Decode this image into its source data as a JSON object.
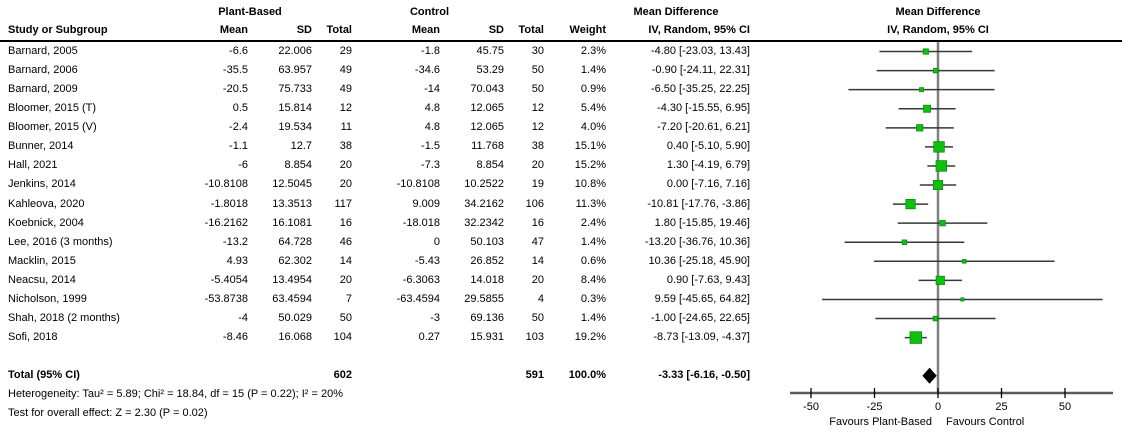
{
  "header": {
    "col_study": "Study or Subgroup",
    "group_experimental": "Plant-Based",
    "group_control": "Control",
    "col_mean": "Mean",
    "col_sd": "SD",
    "col_total": "Total",
    "col_weight": "Weight",
    "md_title": "Mean Difference",
    "md_subtitle": "IV, Random, 95% CI"
  },
  "footer": {
    "heterogeneity": "Heterogeneity: Tau² = 5.89; Chi² = 18.84, df = 15 (P = 0.22); I² = 20%",
    "overall_effect": "Test for overall effect: Z = 2.30 (P = 0.02)"
  },
  "chart_data": {
    "type": "forest",
    "effect_measure": "Mean Difference",
    "model": "IV, Random, 95% CI",
    "axis_ticks": [
      -50,
      -25,
      0,
      25,
      50
    ],
    "xlim": [
      -58,
      69
    ],
    "favours_left": "Favours Plant-Based",
    "favours_right": "Favours Control",
    "marker_color": "#0fc10f",
    "marker_edge_color": "#0b8f0b",
    "ci_line_color": "#383838",
    "zero_line_color": "#808080",
    "diamond_color": "#000000",
    "studies": [
      {
        "name": "Barnard, 2005",
        "pb_mean": "-6.6",
        "pb_sd": "22.006",
        "pb_total": "29",
        "c_mean": "-1.8",
        "c_sd": "45.75",
        "c_total": "30",
        "weight": "2.3%",
        "md_text": "-4.80 [-23.03, 13.43]",
        "md": -4.8,
        "ci": [
          -23.03,
          13.43
        ],
        "w": 2.3
      },
      {
        "name": "Barnard, 2006",
        "pb_mean": "-35.5",
        "pb_sd": "63.957",
        "pb_total": "49",
        "c_mean": "-34.6",
        "c_sd": "53.29",
        "c_total": "50",
        "weight": "1.4%",
        "md_text": "-0.90 [-24.11, 22.31]",
        "md": -0.9,
        "ci": [
          -24.11,
          22.31
        ],
        "w": 1.4
      },
      {
        "name": "Barnard, 2009",
        "pb_mean": "-20.5",
        "pb_sd": "75.733",
        "pb_total": "49",
        "c_mean": "-14",
        "c_sd": "70.043",
        "c_total": "50",
        "weight": "0.9%",
        "md_text": "-6.50 [-35.25, 22.25]",
        "md": -6.5,
        "ci": [
          -35.25,
          22.25
        ],
        "w": 0.9
      },
      {
        "name": "Bloomer, 2015 (T)",
        "pb_mean": "0.5",
        "pb_sd": "15.814",
        "pb_total": "12",
        "c_mean": "4.8",
        "c_sd": "12.065",
        "c_total": "12",
        "weight": "5.4%",
        "md_text": "-4.30 [-15.55, 6.95]",
        "md": -4.3,
        "ci": [
          -15.55,
          6.95
        ],
        "w": 5.4
      },
      {
        "name": "Bloomer, 2015 (V)",
        "pb_mean": "-2.4",
        "pb_sd": "19.534",
        "pb_total": "11",
        "c_mean": "4.8",
        "c_sd": "12.065",
        "c_total": "12",
        "weight": "4.0%",
        "md_text": "-7.20 [-20.61, 6.21]",
        "md": -7.2,
        "ci": [
          -20.61,
          6.21
        ],
        "w": 4.0
      },
      {
        "name": "Bunner, 2014",
        "pb_mean": "-1.1",
        "pb_sd": "12.7",
        "pb_total": "38",
        "c_mean": "-1.5",
        "c_sd": "11.768",
        "c_total": "38",
        "weight": "15.1%",
        "md_text": "0.40 [-5.10, 5.90]",
        "md": 0.4,
        "ci": [
          -5.1,
          5.9
        ],
        "w": 15.1
      },
      {
        "name": "Hall, 2021",
        "pb_mean": "-6",
        "pb_sd": "8.854",
        "pb_total": "20",
        "c_mean": "-7.3",
        "c_sd": "8.854",
        "c_total": "20",
        "weight": "15.2%",
        "md_text": "1.30 [-4.19, 6.79]",
        "md": 1.3,
        "ci": [
          -4.19,
          6.79
        ],
        "w": 15.2
      },
      {
        "name": "Jenkins, 2014",
        "pb_mean": "-10.8108",
        "pb_sd": "12.5045",
        "pb_total": "20",
        "c_mean": "-10.8108",
        "c_sd": "10.2522",
        "c_total": "19",
        "weight": "10.8%",
        "md_text": "0.00 [-7.16, 7.16]",
        "md": 0.0,
        "ci": [
          -7.16,
          7.16
        ],
        "w": 10.8
      },
      {
        "name": "Kahleova, 2020",
        "pb_mean": "-1.8018",
        "pb_sd": "13.3513",
        "pb_total": "117",
        "c_mean": "9.009",
        "c_sd": "34.2162",
        "c_total": "106",
        "weight": "11.3%",
        "md_text": "-10.81 [-17.76, -3.86]",
        "md": -10.81,
        "ci": [
          -17.76,
          -3.86
        ],
        "w": 11.3
      },
      {
        "name": "Koebnick, 2004",
        "pb_mean": "-16.2162",
        "pb_sd": "16.1081",
        "pb_total": "16",
        "c_mean": "-18.018",
        "c_sd": "32.2342",
        "c_total": "16",
        "weight": "2.4%",
        "md_text": "1.80 [-15.85, 19.46]",
        "md": 1.8,
        "ci": [
          -15.85,
          19.46
        ],
        "w": 2.4
      },
      {
        "name": "Lee, 2016 (3 months)",
        "pb_mean": "-13.2",
        "pb_sd": "64.728",
        "pb_total": "46",
        "c_mean": "0",
        "c_sd": "50.103",
        "c_total": "47",
        "weight": "1.4%",
        "md_text": "-13.20 [-36.76, 10.36]",
        "md": -13.2,
        "ci": [
          -36.76,
          10.36
        ],
        "w": 1.4
      },
      {
        "name": "Macklin, 2015",
        "pb_mean": "4.93",
        "pb_sd": "62.302",
        "pb_total": "14",
        "c_mean": "-5.43",
        "c_sd": "26.852",
        "c_total": "14",
        "weight": "0.6%",
        "md_text": "10.36 [-25.18, 45.90]",
        "md": 10.36,
        "ci": [
          -25.18,
          45.9
        ],
        "w": 0.6
      },
      {
        "name": "Neacsu, 2014",
        "pb_mean": "-5.4054",
        "pb_sd": "13.4954",
        "pb_total": "20",
        "c_mean": "-6.3063",
        "c_sd": "14.018",
        "c_total": "20",
        "weight": "8.4%",
        "md_text": "0.90 [-7.63, 9.43]",
        "md": 0.9,
        "ci": [
          -7.63,
          9.43
        ],
        "w": 8.4
      },
      {
        "name": "Nicholson, 1999",
        "pb_mean": "-53.8738",
        "pb_sd": "63.4594",
        "pb_total": "7",
        "c_mean": "-63.4594",
        "c_sd": "29.5855",
        "c_total": "4",
        "weight": "0.3%",
        "md_text": "9.59 [-45.65, 64.82]",
        "md": 9.59,
        "ci": [
          -45.65,
          64.82
        ],
        "w": 0.3
      },
      {
        "name": "Shah, 2018 (2 months)",
        "pb_mean": "-4",
        "pb_sd": "50.029",
        "pb_total": "50",
        "c_mean": "-3",
        "c_sd": "69.136",
        "c_total": "50",
        "weight": "1.4%",
        "md_text": "-1.00 [-24.65, 22.65]",
        "md": -1.0,
        "ci": [
          -24.65,
          22.65
        ],
        "w": 1.4
      },
      {
        "name": "Sofi, 2018",
        "pb_mean": "-8.46",
        "pb_sd": "16.068",
        "pb_total": "104",
        "c_mean": "0.27",
        "c_sd": "15.931",
        "c_total": "103",
        "weight": "19.2%",
        "md_text": "-8.73 [-13.09, -4.37]",
        "md": -8.73,
        "ci": [
          -13.09,
          -4.37
        ],
        "w": 19.2
      }
    ],
    "total": {
      "label": "Total (95% CI)",
      "pb_total": "602",
      "c_total": "591",
      "weight": "100.0%",
      "md_text": "-3.33 [-6.16, -0.50]",
      "md": -3.33,
      "ci": [
        -6.16,
        -0.5
      ]
    }
  }
}
